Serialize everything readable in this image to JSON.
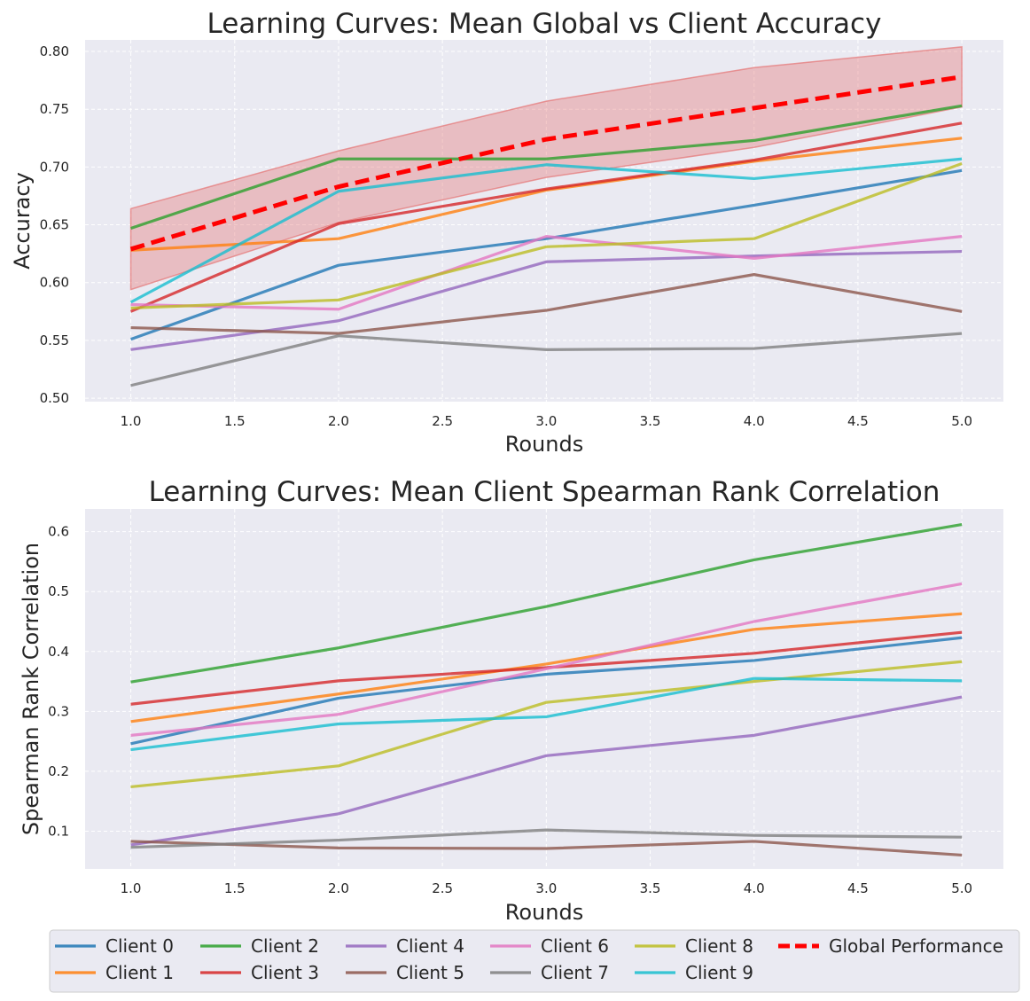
{
  "colors": {
    "c0": "#1f77b4",
    "c1": "#ff7f0e",
    "c2": "#2ca02c",
    "c3": "#d62728",
    "c4": "#9467bd",
    "c5": "#8c564b",
    "c6": "#e377c2",
    "c7": "#7f7f7f",
    "c8": "#bcbd22",
    "c9": "#17becf",
    "global": "#ff0000",
    "band": "#e57373",
    "plot_bg": "#eaeaf2",
    "grid": "#ffffff"
  },
  "chart_data": [
    {
      "type": "line",
      "title": "Learning Curves: Mean Global vs Client Accuracy",
      "xlabel": "Rounds",
      "ylabel": "Accuracy",
      "xlim": [
        0.78,
        5.2
      ],
      "ylim": [
        0.497,
        0.81
      ],
      "xticks": [
        "1.0",
        "1.5",
        "2.0",
        "2.5",
        "3.0",
        "3.5",
        "4.0",
        "4.5",
        "5.0"
      ],
      "yticks": [
        "0.50",
        "0.55",
        "0.60",
        "0.65",
        "0.70",
        "0.75",
        "0.80"
      ],
      "x": [
        1,
        2,
        3,
        4,
        5
      ],
      "series": [
        {
          "name": "Client 0",
          "color_key": "c0",
          "values": [
            0.551,
            0.615,
            0.638,
            0.667,
            0.697
          ]
        },
        {
          "name": "Client 1",
          "color_key": "c1",
          "values": [
            0.628,
            0.638,
            0.68,
            0.705,
            0.725
          ]
        },
        {
          "name": "Client 2",
          "color_key": "c2",
          "values": [
            0.647,
            0.707,
            0.707,
            0.723,
            0.753
          ]
        },
        {
          "name": "Client 3",
          "color_key": "c3",
          "values": [
            0.575,
            0.651,
            0.681,
            0.706,
            0.738
          ]
        },
        {
          "name": "Client 4",
          "color_key": "c4",
          "values": [
            0.542,
            0.567,
            0.618,
            0.623,
            0.627
          ]
        },
        {
          "name": "Client 5",
          "color_key": "c5",
          "values": [
            0.561,
            0.556,
            0.576,
            0.607,
            0.575
          ]
        },
        {
          "name": "Client 6",
          "color_key": "c6",
          "values": [
            0.581,
            0.577,
            0.64,
            0.621,
            0.64
          ]
        },
        {
          "name": "Client 7",
          "color_key": "c7",
          "values": [
            0.511,
            0.554,
            0.542,
            0.543,
            0.556
          ]
        },
        {
          "name": "Client 8",
          "color_key": "c8",
          "values": [
            0.578,
            0.585,
            0.631,
            0.638,
            0.703
          ]
        },
        {
          "name": "Client 9",
          "color_key": "c9",
          "values": [
            0.583,
            0.679,
            0.702,
            0.69,
            0.707
          ]
        }
      ],
      "global": {
        "name": "Global Performance",
        "color_key": "global",
        "values": [
          0.629,
          0.683,
          0.724,
          0.751,
          0.778
        ]
      },
      "band": {
        "upper": [
          0.664,
          0.714,
          0.757,
          0.786,
          0.804
        ],
        "lower": [
          0.594,
          0.652,
          0.691,
          0.717,
          0.752
        ]
      }
    },
    {
      "type": "line",
      "title": "Learning Curves: Mean Client Spearman Rank Correlation",
      "xlabel": "Rounds",
      "ylabel": "Spearman Rank Correlation",
      "xlim": [
        0.78,
        5.2
      ],
      "ylim": [
        0.037,
        0.638
      ],
      "xticks": [
        "1.0",
        "1.5",
        "2.0",
        "2.5",
        "3.0",
        "3.5",
        "4.0",
        "4.5",
        "5.0"
      ],
      "yticks": [
        "0.1",
        "0.2",
        "0.3",
        "0.4",
        "0.5",
        "0.6"
      ],
      "x": [
        1,
        2,
        3,
        4,
        5
      ],
      "series": [
        {
          "name": "Client 0",
          "color_key": "c0",
          "values": [
            0.246,
            0.322,
            0.362,
            0.385,
            0.423
          ]
        },
        {
          "name": "Client 1",
          "color_key": "c1",
          "values": [
            0.283,
            0.329,
            0.379,
            0.437,
            0.463
          ]
        },
        {
          "name": "Client 2",
          "color_key": "c2",
          "values": [
            0.349,
            0.406,
            0.475,
            0.553,
            0.612
          ]
        },
        {
          "name": "Client 3",
          "color_key": "c3",
          "values": [
            0.312,
            0.351,
            0.373,
            0.397,
            0.432
          ]
        },
        {
          "name": "Client 4",
          "color_key": "c4",
          "values": [
            0.077,
            0.129,
            0.226,
            0.26,
            0.324
          ]
        },
        {
          "name": "Client 5",
          "color_key": "c5",
          "values": [
            0.083,
            0.072,
            0.071,
            0.083,
            0.06
          ]
        },
        {
          "name": "Client 6",
          "color_key": "c6",
          "values": [
            0.26,
            0.295,
            0.371,
            0.45,
            0.513
          ]
        },
        {
          "name": "Client 7",
          "color_key": "c7",
          "values": [
            0.073,
            0.085,
            0.102,
            0.093,
            0.09
          ]
        },
        {
          "name": "Client 8",
          "color_key": "c8",
          "values": [
            0.174,
            0.209,
            0.315,
            0.35,
            0.383
          ]
        },
        {
          "name": "Client 9",
          "color_key": "c9",
          "values": [
            0.236,
            0.279,
            0.291,
            0.355,
            0.351
          ]
        }
      ]
    }
  ],
  "legend": {
    "placement": "bottom",
    "columns": [
      [
        {
          "label": "Client 0",
          "color_key": "c0"
        },
        {
          "label": "Client 1",
          "color_key": "c1"
        }
      ],
      [
        {
          "label": "Client 2",
          "color_key": "c2"
        },
        {
          "label": "Client 3",
          "color_key": "c3"
        }
      ],
      [
        {
          "label": "Client 4",
          "color_key": "c4"
        },
        {
          "label": "Client 5",
          "color_key": "c5"
        }
      ],
      [
        {
          "label": "Client 6",
          "color_key": "c6"
        },
        {
          "label": "Client 7",
          "color_key": "c7"
        }
      ],
      [
        {
          "label": "Client 8",
          "color_key": "c8"
        },
        {
          "label": "Client 9",
          "color_key": "c9"
        }
      ],
      [
        {
          "label": "Global Performance",
          "color_key": "global",
          "dashed": true
        }
      ]
    ]
  }
}
